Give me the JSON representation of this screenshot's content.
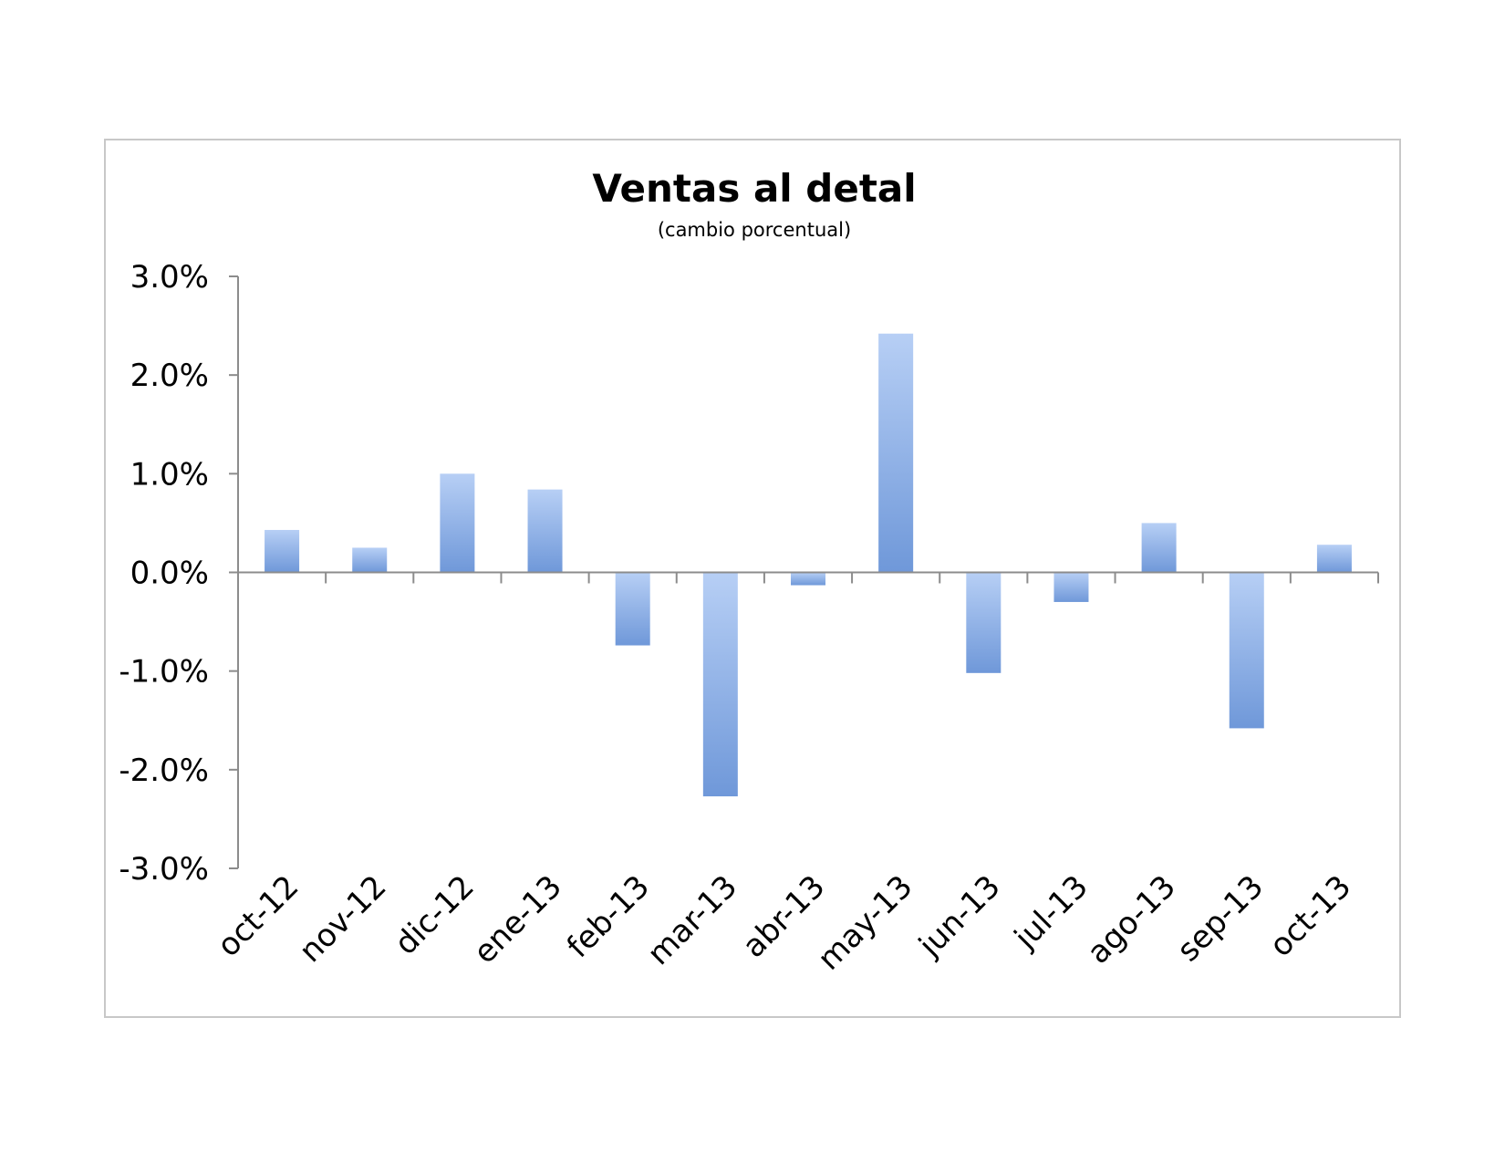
{
  "chart_data": {
    "type": "bar",
    "title": "Ventas al detal",
    "subtitle": "(cambio porcentual)",
    "xlabel": "",
    "ylabel": "",
    "categories": [
      "oct-12",
      "nov-12",
      "dic-12",
      "ene-13",
      "feb-13",
      "mar-13",
      "abr-13",
      "may-13",
      "jun-13",
      "jul-13",
      "ago-13",
      "sep-13",
      "oct-13"
    ],
    "values": [
      0.43,
      0.25,
      1.0,
      0.84,
      -0.74,
      -2.27,
      -0.13,
      2.42,
      -1.02,
      -0.3,
      0.5,
      -1.58,
      0.28
    ],
    "ylim": [
      -3.0,
      3.0
    ],
    "yticks": [
      3.0,
      2.0,
      1.0,
      0.0,
      -1.0,
      -2.0,
      -3.0
    ],
    "ytick_labels": [
      "3.0%",
      "2.0%",
      "1.0%",
      "0.0%",
      "-1.0%",
      "-2.0%",
      "-3.0%"
    ],
    "grid": false,
    "legend": "none",
    "colors": {
      "bar_light": "#b7cff5",
      "bar_dark": "#6f98d9",
      "axis": "#8c8c8c"
    }
  }
}
